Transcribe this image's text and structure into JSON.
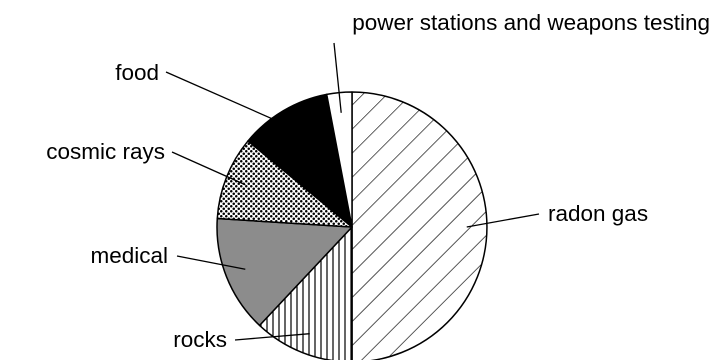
{
  "chart_data": {
    "type": "pie",
    "title": "",
    "slices": [
      {
        "label": "radon gas",
        "value": 50,
        "fill": "hatch-diagonal"
      },
      {
        "label": "rocks",
        "value": 12,
        "fill": "hatch-vertical"
      },
      {
        "label": "medical",
        "value": 14,
        "fill": "#8c8c8c"
      },
      {
        "label": "cosmic rays",
        "value": 10,
        "fill": "dots"
      },
      {
        "label": "food",
        "value": 11,
        "fill": "#000000"
      },
      {
        "label": "power stations and weapons testing",
        "value": 3,
        "fill": "#ffffff"
      }
    ],
    "legend": "none",
    "labels": "outside-with-leader-lines"
  },
  "colors": {
    "outline": "#000000",
    "background": "#ffffff"
  }
}
